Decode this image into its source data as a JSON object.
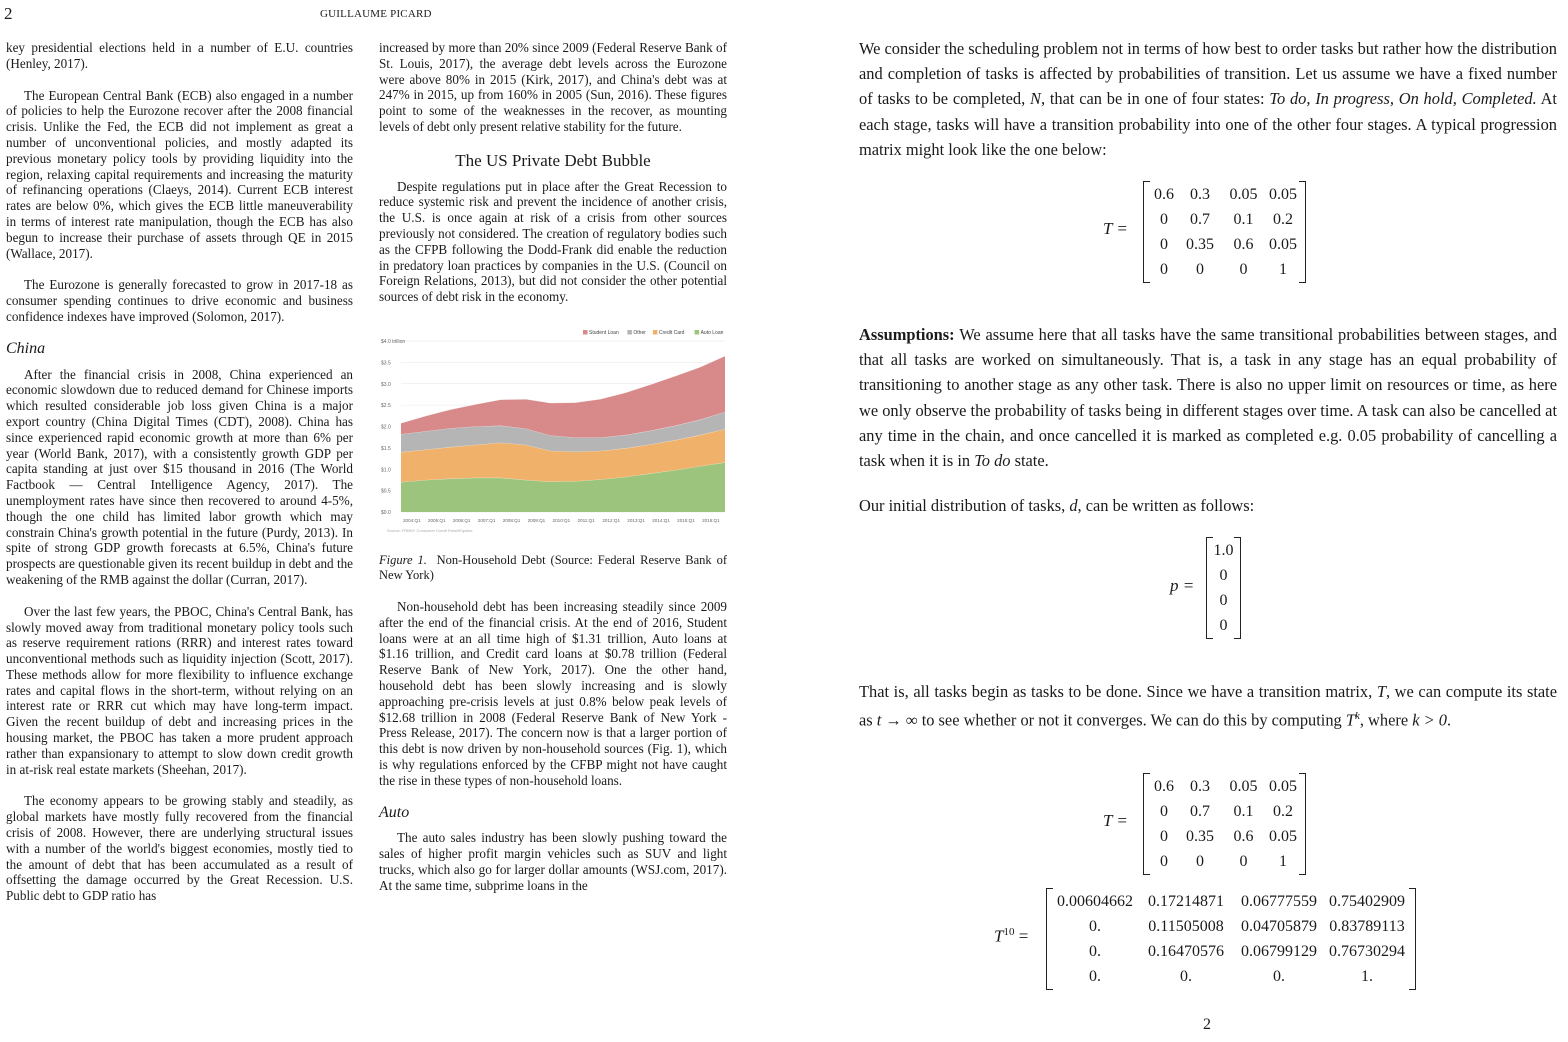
{
  "left_page": {
    "page_number": "2",
    "running_head": "GUILLAUME PICARD",
    "col_a": {
      "p1": "key presidential elections held in a number of E.U. countries (Henley, 2017).",
      "p2": "The European Central Bank (ECB) also engaged in a number of policies to help the Eurozone recover after the 2008 financial crisis. Unlike the Fed, the ECB did not implement as great a number of unconventional policies, and mostly adapted its previous monetary policy tools by providing liquidity into the region, relaxing capital requirements and increasing the maturity of refinancing operations (Claeys, 2014). Current ECB interest rates are below 0%, which gives the ECB little maneuverability in terms of interest rate manipulation, though the ECB has also begun to increase their purchase of assets through QE in 2015 (Wallace, 2017).",
      "p3": "The Eurozone is generally forecasted to grow in 2017-18 as consumer spending continues to drive economic and business confidence indexes have improved (Solomon, 2017).",
      "heading_china": "China",
      "p4": "After the financial crisis in 2008, China experienced an economic slowdown due to reduced demand for Chinese imports which resulted considerable job loss given China is a major export country (China Digital Times (CDT), 2008). China has since experienced rapid economic growth at more than 6% per year (World Bank, 2017), with a consistently growth GDP per capita standing at just over $15 thousand in 2016 (The World Factbook — Central Intelligence Agency, 2017). The unemployment rates have since then recovered to around 4-5%, though the one child has limited labor growth which may constrain China's growth potential in the future (Purdy, 2013). In spite of strong GDP growth forecasts at 6.5%, China's future prospects are questionable given its recent buildup in debt and the weakening of the RMB against the dollar (Curran, 2017).",
      "p5": "Over the last few years, the PBOC, China's Central Bank, has slowly moved away from traditional monetary policy tools such as reserve requirement rations (RRR) and interest rates toward unconventional methods such as liquidity injection (Scott, 2017). These methods allow for more flexibility to influence exchange rates and capital flows in the short-term, without relying on an interest rate or RRR cut which may have long-term impact. Given the recent buildup of debt and increasing prices in the housing market, the PBOC has taken a more prudent approach rather than expansionary to attempt to slow down credit growth in at-risk real estate markets (Sheehan, 2017).",
      "p6": "The economy appears to be growing stably and steadily, as global markets have mostly fully recovered from the financial crisis of 2008. However, there are underlying structural issues with a number of the world's biggest economies, mostly tied to the amount of debt that has been accumulated as a result of offsetting the damage occurred by the Great Recession. U.S. Public debt to GDP ratio has"
    },
    "col_b": {
      "p1": "increased by more than 20% since 2009 (Federal Reserve Bank of St. Louis, 2017), the average debt levels across the Eurozone were above 80% in 2015 (Kirk, 2017), and China's debt was at 247% in 2015, up from 160% in 2005 (Sun, 2016). These figures point to some of the weaknesses in the recover, as mounting levels of debt only present relative stability for the future.",
      "heading_us": "The US Private Debt Bubble",
      "p2": "Despite regulations put in place after the Great Recession to reduce systemic risk and prevent the incidence of another crisis, the U.S. is once again at risk of a crisis from other sources previously not considered. The creation of regulatory bodies such as the CFPB following the Dodd-Frank did enable the reduction in predatory loan practices by companies in the U.S. (Council on Foreign Relations, 2013), but did not consider the other potential sources of debt risk in the economy.",
      "fig_label": "Figure 1.",
      "fig_caption": "Non-Household Debt (Source: Federal Reserve Bank of New York)",
      "p3": "Non-household debt has been increasing steadily since 2009 after the end of the financial crisis. At the end of 2016, Student loans were at an all time high of $1.31 trillion, Auto loans at $1.16 trillion, and Credit card loans at $0.78 trillion (Federal Reserve Bank of New York, 2017). One the other hand, household debt has been slowly increasing and is slowly approaching pre-crisis levels at just 0.8% below peak levels of $12.68 trillion in 2008 (Federal Reserve Bank of New York - Press Release, 2017). The concern now is that a larger portion of this debt is now driven by non-household sources (Fig. 1), which is why regulations enforced by the CFBP might not have caught the rise in these types of non-household loans.",
      "heading_auto": "Auto",
      "p4": "The auto sales industry has been slowly pushing toward the sales of higher profit margin vehicles such as SUV and light trucks, which also go for larger dollar amounts (WSJ.com, 2017). At the same time, subprime loans in the"
    }
  },
  "chart_data": {
    "type": "area",
    "stacked": true,
    "title": "",
    "ylabel_top": "$4.0 trillion",
    "y_ticks": [
      "$0.0",
      "$0.5",
      "$1.0",
      "$1.5",
      "$2.0",
      "$2.5",
      "$3.0",
      "$3.5",
      "$4.0 trillion"
    ],
    "ylim": [
      0,
      4.0
    ],
    "categories": [
      "2004:Q1",
      "2005:Q1",
      "2006:Q1",
      "2007:Q1",
      "2008:Q1",
      "2009:Q1",
      "2010:Q1",
      "2011:Q1",
      "2012:Q1",
      "2013:Q1",
      "2014:Q1",
      "2015:Q1",
      "2016:Q1",
      "2017:Q1"
    ],
    "x_tick_labels": [
      "2004:Q1",
      "2005:Q1",
      "2006:Q1",
      "2007:Q1",
      "2008:Q1",
      "2009:Q1",
      "2010:Q1",
      "2011:Q1",
      "2012:Q1",
      "2013:Q1",
      "2014:Q1",
      "2015:Q1",
      "2016:Q1"
    ],
    "legend_position": "top-right",
    "source_note": "Source: FRBNY Consumer Credit Panel/Equifax",
    "series": [
      {
        "name": "Auto Loan",
        "color": "#9dc47d",
        "values": [
          0.7,
          0.75,
          0.78,
          0.8,
          0.8,
          0.75,
          0.71,
          0.72,
          0.76,
          0.82,
          0.9,
          0.98,
          1.07,
          1.16
        ]
      },
      {
        "name": "Credit Card",
        "color": "#f0b16a",
        "values": [
          0.7,
          0.71,
          0.74,
          0.77,
          0.82,
          0.82,
          0.72,
          0.69,
          0.67,
          0.67,
          0.68,
          0.7,
          0.73,
          0.78
        ]
      },
      {
        "name": "Other",
        "color": "#b5b5b5",
        "values": [
          0.42,
          0.43,
          0.44,
          0.43,
          0.4,
          0.38,
          0.36,
          0.33,
          0.31,
          0.31,
          0.32,
          0.34,
          0.36,
          0.4
        ]
      },
      {
        "name": "Student Loan",
        "color": "#d88a8a",
        "values": [
          0.26,
          0.36,
          0.44,
          0.52,
          0.61,
          0.69,
          0.76,
          0.82,
          0.9,
          0.99,
          1.08,
          1.16,
          1.23,
          1.31
        ]
      }
    ]
  },
  "right_page": {
    "para1_a": "We consider the scheduling problem not in terms of how best to order tasks but rather how the distribution and completion of tasks is affected by probabilities of transition. Let us assume we have a fixed number of tasks to be completed, ",
    "para1_N": "N",
    "para1_b": ", that can be in one of four states: ",
    "para1_states": "To do, In progress, On hold, Completed.",
    "para1_c": " At each stage, tasks will have a transition probability into one of the other four stages. A typical progression matrix might look like the one below:",
    "matrix_T_label": "T =",
    "matrix_T": [
      [
        "0.6",
        "0.3",
        "0.05",
        "0.05"
      ],
      [
        "0",
        "0.7",
        "0.1",
        "0.2"
      ],
      [
        "0",
        "0.35",
        "0.6",
        "0.05"
      ],
      [
        "0",
        "0",
        "0",
        "1"
      ]
    ],
    "assumptions_label": "Assumptions:",
    "assumptions_text": " We assume here that all tasks have the same transitional probabilities between stages, and that all tasks are worked on simultaneously. That is, a task in any stage has an equal probability of transitioning to another stage as any other task. There is also no upper limit on resources or time, as here we only observe the probability of tasks being in different stages over time. A task can also be cancelled at any time in the chain, and once cancelled it is marked as completed e.g. 0.05 probability of cancelling a task when it is in ",
    "assumptions_todo": "To do",
    "assumptions_end": " state.",
    "para3_a": "Our initial distribution of tasks, ",
    "para3_d": "d",
    "para3_b": ", can be written as follows:",
    "vector_p_label": "p =",
    "vector_p": [
      "1.0",
      "0",
      "0",
      "0"
    ],
    "para4_a": "That is, all tasks begin as tasks to be done. Since we have a transition matrix, ",
    "para4_T": "T",
    "para4_b": ", we can compute its state as ",
    "para4_limit": "t → ∞",
    "para4_c": " to see whether or not it converges. We can do this by computing ",
    "para4_Tk": "T",
    "para4_k": "k",
    "para4_d": ", where ",
    "para4_kgt": "k > 0",
    "para4_e": ".",
    "matrix_T10_label": "T",
    "matrix_T10_sup": "10",
    "matrix_T10": [
      [
        "0.00604662",
        "0.17214871",
        "0.06777559",
        "0.75402909"
      ],
      [
        "0.",
        "0.11505008",
        "0.04705879",
        "0.83789113"
      ],
      [
        "0.",
        "0.16470576",
        "0.06799129",
        "0.76730294"
      ],
      [
        "0.",
        "0.",
        "0.",
        "1."
      ]
    ],
    "page_number": "2"
  }
}
